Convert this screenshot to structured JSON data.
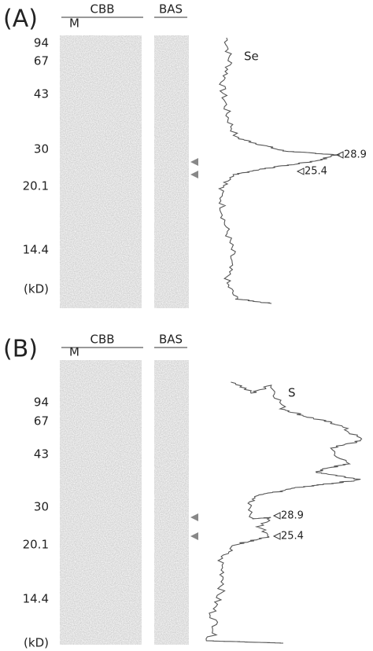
{
  "panels": [
    {
      "label": "(A)",
      "cbb": "CBB",
      "lane_marker": "M",
      "bas": "BAS",
      "markers": [
        "94",
        "67",
        "43",
        "30",
        "20.1",
        "14.4"
      ],
      "unit": "(kD)",
      "trace_label": "Se",
      "peaks": [
        "28.9",
        "25.4"
      ]
    },
    {
      "label": "(B)",
      "cbb": "CBB",
      "lane_marker": "M",
      "bas": "BAS",
      "markers": [
        "94",
        "67",
        "43",
        "30",
        "20.1",
        "14.4"
      ],
      "unit": "(kD)",
      "trace_label": "S",
      "peaks": [
        "28.9",
        "25.4"
      ]
    }
  ]
}
